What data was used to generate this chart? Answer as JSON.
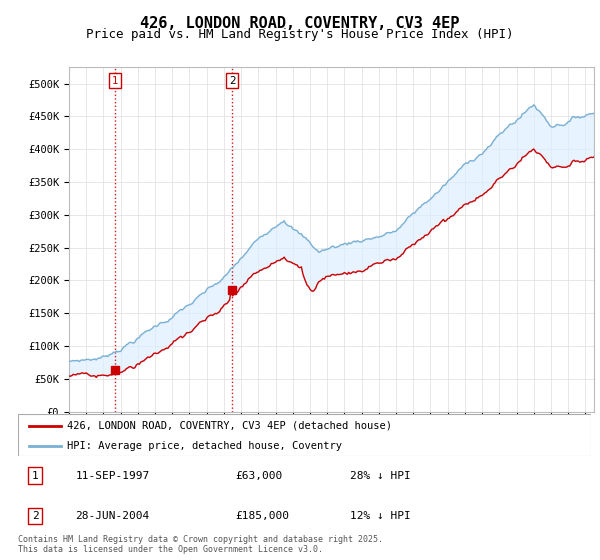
{
  "title": "426, LONDON ROAD, COVENTRY, CV3 4EP",
  "subtitle": "Price paid vs. HM Land Registry's House Price Index (HPI)",
  "ylim": [
    0,
    525000
  ],
  "yticks": [
    0,
    50000,
    100000,
    150000,
    200000,
    250000,
    300000,
    350000,
    400000,
    450000,
    500000
  ],
  "ytick_labels": [
    "£0",
    "£50K",
    "£100K",
    "£150K",
    "£200K",
    "£250K",
    "£300K",
    "£350K",
    "£400K",
    "£450K",
    "£500K"
  ],
  "xlim_start": 1995.0,
  "xlim_end": 2025.5,
  "sale1_date": 1997.695,
  "sale1_price": 63000,
  "sale1_label": "1",
  "sale1_text": "11-SEP-1997",
  "sale1_amount": "£63,000",
  "sale1_hpi": "28% ↓ HPI",
  "sale2_date": 2004.49,
  "sale2_price": 185000,
  "sale2_label": "2",
  "sale2_text": "28-JUN-2004",
  "sale2_amount": "£185,000",
  "sale2_hpi": "12% ↓ HPI",
  "legend_line1": "426, LONDON ROAD, COVENTRY, CV3 4EP (detached house)",
  "legend_line2": "HPI: Average price, detached house, Coventry",
  "footer": "Contains HM Land Registry data © Crown copyright and database right 2025.\nThis data is licensed under the Open Government Licence v3.0.",
  "price_color": "#cc0000",
  "hpi_color": "#7ab0d4",
  "fill_color": "#ddeeff",
  "bg_color": "#ffffff",
  "grid_color": "#dddddd",
  "title_fontsize": 11,
  "subtitle_fontsize": 9
}
